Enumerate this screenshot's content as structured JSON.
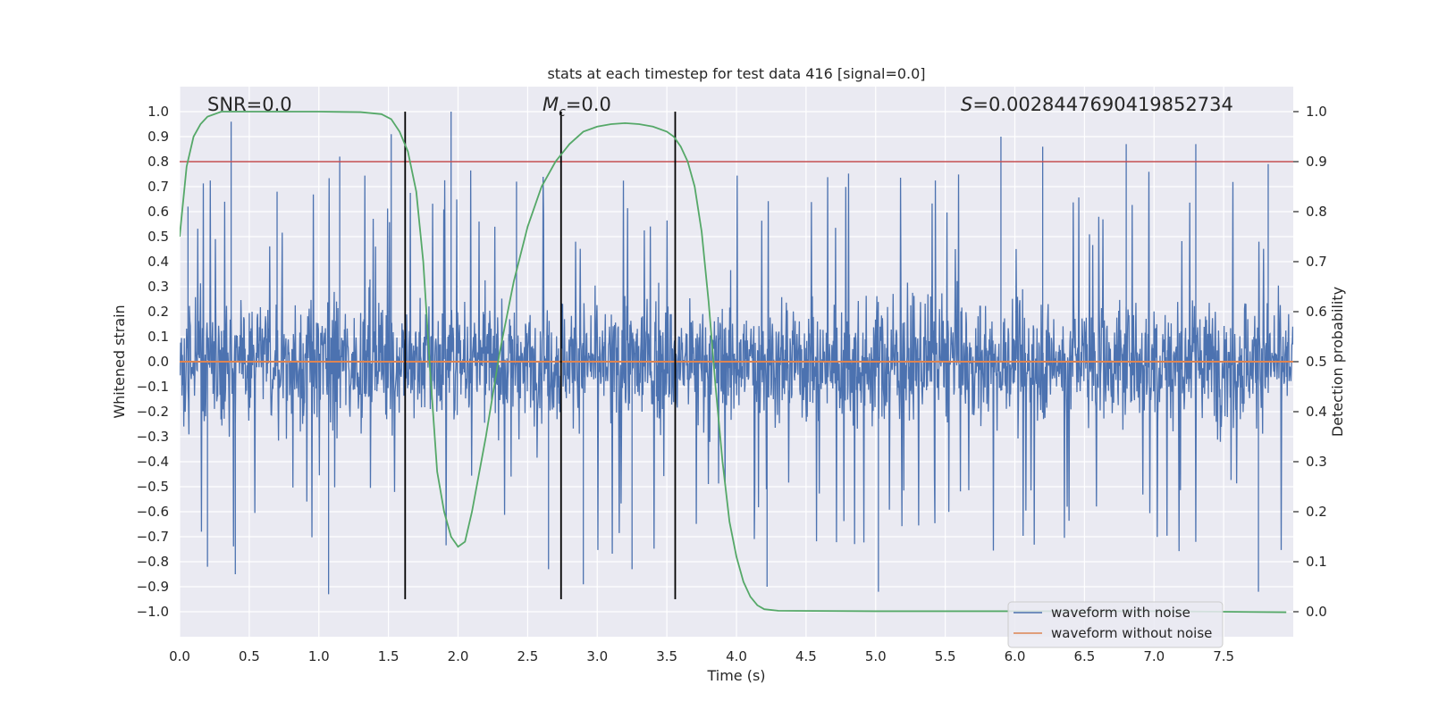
{
  "chart_data": {
    "type": "line",
    "title": "stats at each timestep for test data 416 [signal=0.0]",
    "xlabel": "Time (s)",
    "ylabel": "Whitened strain",
    "y2label": "Detection probability",
    "xlim": [
      0.0,
      8.0
    ],
    "ylim": [
      -1.1,
      1.1
    ],
    "y2lim": [
      -0.05,
      1.05
    ],
    "x_ticks": [
      "0.0",
      "0.5",
      "1.0",
      "1.5",
      "2.0",
      "2.5",
      "3.0",
      "3.5",
      "4.0",
      "4.5",
      "5.0",
      "5.5",
      "6.0",
      "6.5",
      "7.0",
      "7.5"
    ],
    "y_ticks": [
      "1.0",
      "0.9",
      "0.8",
      "0.7",
      "0.6",
      "0.5",
      "0.4",
      "0.3",
      "0.2",
      "0.1",
      "0.0",
      "-0.1",
      "-0.2",
      "-0.3",
      "-0.4",
      "-0.5",
      "-0.6",
      "-0.7",
      "-0.8",
      "-0.9",
      "-1.0"
    ],
    "y2_ticks": [
      "1.0",
      "0.9",
      "0.8",
      "0.7",
      "0.6",
      "0.5",
      "0.4",
      "0.3",
      "0.2",
      "0.1",
      "0.0"
    ],
    "grid": true,
    "legend_position": "lower-right",
    "annotations": {
      "snr": "SNR=0.0",
      "mc_prefix": "M",
      "mc_sub": "c",
      "mc_value": "=0.0",
      "s_prefix": "S",
      "s_value": "=0.0028447690419852734"
    },
    "series": [
      {
        "name": "waveform with noise",
        "color": "#4c72b0",
        "axis": "left",
        "description": "dense noise; typical band approx -0.5 to 0.5, spikes to about +/-1.0",
        "noise_band": [
          -0.5,
          0.5
        ],
        "spikes": [
          {
            "x": 0.06,
            "y": 0.62
          },
          {
            "x": 0.37,
            "y": 0.96
          },
          {
            "x": 0.2,
            "y": -0.82
          },
          {
            "x": 0.4,
            "y": -0.85
          },
          {
            "x": 0.7,
            "y": 0.68
          },
          {
            "x": 1.07,
            "y": -0.93
          },
          {
            "x": 1.15,
            "y": 0.82
          },
          {
            "x": 1.52,
            "y": 0.91
          },
          {
            "x": 1.95,
            "y": 1.0
          },
          {
            "x": 2.42,
            "y": 0.72
          },
          {
            "x": 2.65,
            "y": -0.83
          },
          {
            "x": 2.9,
            "y": -0.89
          },
          {
            "x": 3.25,
            "y": -0.83
          },
          {
            "x": 4.22,
            "y": -0.9
          },
          {
            "x": 5.02,
            "y": -0.92
          },
          {
            "x": 5.9,
            "y": 0.9
          },
          {
            "x": 6.2,
            "y": 0.86
          },
          {
            "x": 6.8,
            "y": 0.87
          },
          {
            "x": 7.3,
            "y": 0.87
          },
          {
            "x": 7.75,
            "y": -0.92
          },
          {
            "x": 7.82,
            "y": 0.79
          }
        ]
      },
      {
        "name": "waveform without noise",
        "color": "#dd8452",
        "axis": "left",
        "x": [
          0.0,
          8.0
        ],
        "y": [
          0.0,
          0.0
        ]
      },
      {
        "name": "detection probability",
        "color": "#55a868",
        "axis": "right",
        "x": [
          0.0,
          0.05,
          0.1,
          0.15,
          0.2,
          0.3,
          0.4,
          0.6,
          1.0,
          1.3,
          1.45,
          1.52,
          1.58,
          1.64,
          1.7,
          1.75,
          1.8,
          1.85,
          1.9,
          1.95,
          2.0,
          2.05,
          2.1,
          2.2,
          2.3,
          2.4,
          2.5,
          2.6,
          2.7,
          2.8,
          2.9,
          3.0,
          3.1,
          3.2,
          3.3,
          3.4,
          3.5,
          3.55,
          3.6,
          3.65,
          3.7,
          3.75,
          3.8,
          3.85,
          3.9,
          3.95,
          4.0,
          4.05,
          4.1,
          4.15,
          4.2,
          4.3,
          5.0,
          6.0,
          7.0,
          7.5,
          7.95
        ],
        "y": [
          0.75,
          0.89,
          0.95,
          0.975,
          0.99,
          1.0,
          1.0,
          1.0,
          1.0,
          0.999,
          0.995,
          0.985,
          0.96,
          0.92,
          0.84,
          0.7,
          0.48,
          0.28,
          0.2,
          0.15,
          0.13,
          0.14,
          0.2,
          0.35,
          0.52,
          0.66,
          0.77,
          0.85,
          0.9,
          0.935,
          0.96,
          0.97,
          0.975,
          0.977,
          0.975,
          0.97,
          0.96,
          0.95,
          0.93,
          0.9,
          0.85,
          0.76,
          0.62,
          0.45,
          0.3,
          0.18,
          0.11,
          0.06,
          0.03,
          0.013,
          0.005,
          0.002,
          0.001,
          0.001,
          0.001,
          0.0,
          -0.001
        ]
      }
    ],
    "reference_lines": {
      "horizontal": [
        {
          "axis": "left",
          "y": 0.8,
          "color": "#c44e52"
        }
      ],
      "vertical": [
        {
          "x": 1.62
        },
        {
          "x": 2.74
        },
        {
          "x": 3.56
        }
      ],
      "color": "#000000"
    },
    "legend": [
      "waveform with noise",
      "waveform without noise"
    ]
  }
}
